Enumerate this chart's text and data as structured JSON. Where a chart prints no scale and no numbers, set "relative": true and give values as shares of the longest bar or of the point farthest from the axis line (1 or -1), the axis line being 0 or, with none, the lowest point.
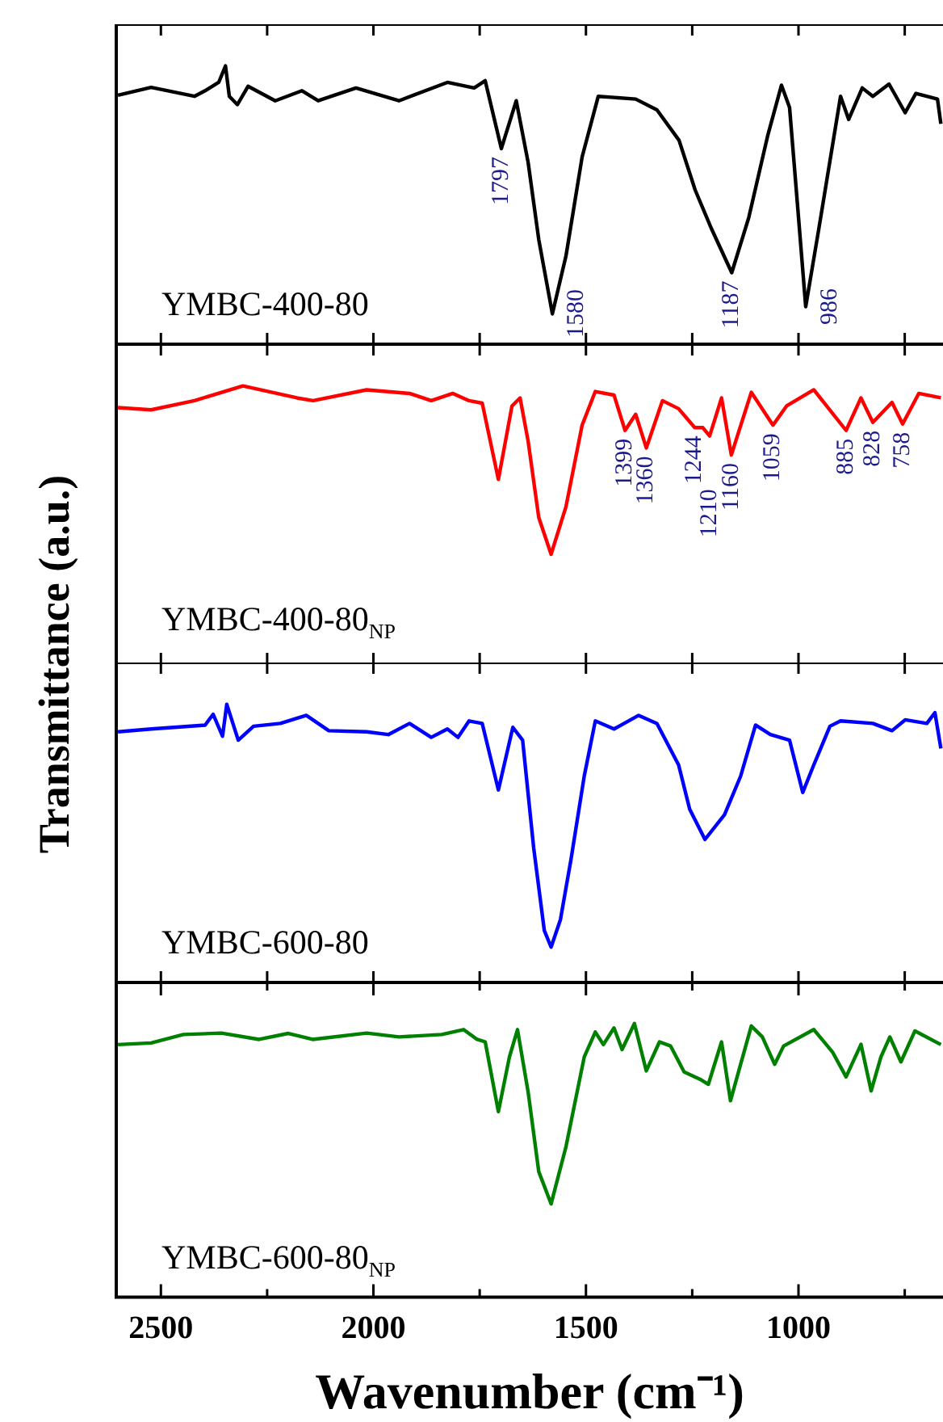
{
  "chart_data": [
    {
      "type": "line",
      "ylabel": "Transmittance (a.u.)",
      "relative": true,
      "xlim": [
        2605,
        660
      ],
      "xticks": [
        {
          "value": 2500,
          "label": null
        },
        {
          "value": 2250,
          "label": null
        },
        {
          "value": 2000,
          "label": null
        },
        {
          "value": 1750,
          "label": null
        },
        {
          "value": 1500,
          "label": null
        },
        {
          "value": 1250,
          "label": null
        },
        {
          "value": 1000,
          "label": null
        },
        {
          "value": 750,
          "label": null
        }
      ],
      "tick_labels": false,
      "series": [
        {
          "name": "YMBC-400-80",
          "color": "#000000",
          "x": [
            2601,
            2523,
            2421,
            2396,
            2364,
            2348,
            2339,
            2320,
            2295,
            2231,
            2168,
            2130,
            2041,
            1940,
            1826,
            1763,
            1737,
            1699,
            1664,
            1636,
            1611,
            1579,
            1547,
            1509,
            1471,
            1383,
            1333,
            1281,
            1243,
            1205,
            1157,
            1117,
            1072,
            1040,
            1021,
            1002,
            983,
            952,
            901,
            882,
            850,
            825,
            787,
            749,
            724,
            673,
            665
          ],
          "values": [
            0.895,
            0.923,
            0.891,
            0.911,
            0.941,
            1.0,
            0.891,
            0.861,
            0.927,
            0.875,
            0.911,
            0.875,
            0.921,
            0.875,
            0.941,
            0.921,
            0.947,
            0.703,
            0.875,
            0.653,
            0.376,
            0.109,
            0.317,
            0.673,
            0.891,
            0.881,
            0.842,
            0.733,
            0.554,
            0.416,
            0.257,
            0.455,
            0.752,
            0.931,
            0.851,
            0.495,
            0.135,
            0.416,
            0.891,
            0.808,
            0.921,
            0.891,
            0.935,
            0.832,
            0.901,
            0.881,
            0.792
          ]
        }
      ],
      "annotations": [
        {
          "text": "1797",
          "x": 1699,
          "y": 0.703
        },
        {
          "text": "1580",
          "x": 1579,
          "y": 0.109
        },
        {
          "text": "1187",
          "x": 1157,
          "y": 0.257
        },
        {
          "text": "986",
          "x": 983,
          "y": 0.135
        }
      ]
    },
    {
      "type": "line",
      "relative": true,
      "xlim": [
        2605,
        660
      ],
      "xticks": [
        {
          "value": 2500,
          "label": null
        },
        {
          "value": 2250,
          "label": null
        },
        {
          "value": 2000,
          "label": null
        },
        {
          "value": 1750,
          "label": null
        },
        {
          "value": 1500,
          "label": null
        },
        {
          "value": 1250,
          "label": null
        },
        {
          "value": 1000,
          "label": null
        },
        {
          "value": 750,
          "label": null
        }
      ],
      "tick_labels": false,
      "series": [
        {
          "name": "YMBC-400-80$_{NP}$",
          "color": "#ff0000",
          "x": [
            2601,
            2523,
            2421,
            2307,
            2180,
            2142,
            2016,
            1915,
            1864,
            1813,
            1775,
            1744,
            1706,
            1674,
            1655,
            1636,
            1611,
            1582,
            1547,
            1509,
            1478,
            1434,
            1408,
            1383,
            1358,
            1320,
            1282,
            1244,
            1225,
            1209,
            1181,
            1158,
            1111,
            1060,
            1028,
            964,
            888,
            853,
            825,
            780,
            755,
            717,
            665
          ],
          "values": [
            0.922,
            0.914,
            0.947,
            1.0,
            0.957,
            0.947,
            0.986,
            0.973,
            0.947,
            0.973,
            0.947,
            0.938,
            0.664,
            0.928,
            0.957,
            0.801,
            0.527,
            0.395,
            0.566,
            0.859,
            0.98,
            0.967,
            0.84,
            0.898,
            0.777,
            0.947,
            0.918,
            0.85,
            0.85,
            0.82,
            0.957,
            0.752,
            0.977,
            0.859,
            0.928,
            0.986,
            0.84,
            0.957,
            0.869,
            0.941,
            0.863,
            0.973,
            0.957
          ]
        }
      ],
      "annotations": [
        {
          "text": "1399",
          "x": 1408,
          "y": 0.84
        },
        {
          "text": "1360",
          "x": 1358,
          "y": 0.777
        },
        {
          "text": "1244",
          "x": 1244,
          "y": 0.85
        },
        {
          "text": "1210",
          "x": 1209,
          "y": 0.82
        },
        {
          "text": "1160",
          "x": 1158,
          "y": 0.752
        },
        {
          "text": "1059",
          "x": 1060,
          "y": 0.859
        },
        {
          "text": "885",
          "x": 888,
          "y": 0.84
        },
        {
          "text": "828",
          "x": 825,
          "y": 0.869
        },
        {
          "text": "758",
          "x": 755,
          "y": 0.863
        }
      ]
    },
    {
      "type": "line",
      "relative": true,
      "xlim": [
        2605,
        660
      ],
      "xticks": [
        {
          "value": 2500,
          "label": null
        },
        {
          "value": 2250,
          "label": null
        },
        {
          "value": 2000,
          "label": null
        },
        {
          "value": 1750,
          "label": null
        },
        {
          "value": 1500,
          "label": null
        },
        {
          "value": 1250,
          "label": null
        },
        {
          "value": 1000,
          "label": null
        },
        {
          "value": 750,
          "label": null
        }
      ],
      "tick_labels": false,
      "series": [
        {
          "name": "YMBC-600-80",
          "color": "#0000ff",
          "x": [
            2601,
            2523,
            2396,
            2377,
            2355,
            2345,
            2318,
            2282,
            2219,
            2158,
            2105,
            2016,
            1965,
            1915,
            1864,
            1826,
            1801,
            1775,
            1744,
            1706,
            1672,
            1649,
            1623,
            1598,
            1582,
            1560,
            1535,
            1504,
            1478,
            1434,
            1376,
            1333,
            1282,
            1256,
            1220,
            1174,
            1136,
            1101,
            1066,
            1021,
            990,
            964,
            926,
            901,
            825,
            780,
            749,
            698,
            679,
            665
          ],
          "values": [
            0.901,
            0.911,
            0.925,
            0.964,
            0.885,
            1.0,
            0.871,
            0.921,
            0.931,
            0.96,
            0.905,
            0.901,
            0.891,
            0.931,
            0.881,
            0.911,
            0.881,
            0.94,
            0.931,
            0.692,
            0.917,
            0.871,
            0.484,
            0.187,
            0.127,
            0.226,
            0.444,
            0.742,
            0.94,
            0.911,
            0.96,
            0.931,
            0.782,
            0.623,
            0.514,
            0.603,
            0.742,
            0.925,
            0.891,
            0.871,
            0.683,
            0.782,
            0.921,
            0.94,
            0.931,
            0.905,
            0.944,
            0.931,
            0.97,
            0.841
          ]
        }
      ]
    },
    {
      "type": "line",
      "relative": true,
      "xlabel": "Wavenumber (cm⁻¹)",
      "xlim": [
        2605,
        660
      ],
      "xticks": [
        {
          "value": 2500,
          "label": "2500"
        },
        {
          "value": 2250,
          "label": null
        },
        {
          "value": 2000,
          "label": "2000"
        },
        {
          "value": 1750,
          "label": null
        },
        {
          "value": 1500,
          "label": "1500"
        },
        {
          "value": 1250,
          "label": null
        },
        {
          "value": 1000,
          "label": "1000"
        },
        {
          "value": 750,
          "label": null
        }
      ],
      "tick_labels": "x",
      "series": [
        {
          "name": "YMBC-600-80$_{NP}$",
          "color": "#008000",
          "x": [
            2601,
            2523,
            2447,
            2358,
            2269,
            2200,
            2143,
            2016,
            1940,
            1839,
            1788,
            1756,
            1737,
            1706,
            1680,
            1661,
            1636,
            1611,
            1582,
            1547,
            1504,
            1478,
            1459,
            1434,
            1415,
            1386,
            1358,
            1327,
            1301,
            1269,
            1231,
            1212,
            1181,
            1160,
            1111,
            1085,
            1056,
            1035,
            964,
            920,
            888,
            853,
            829,
            806,
            785,
            759,
            726,
            665
          ],
          "values": [
            0.923,
            0.929,
            0.96,
            0.965,
            0.942,
            0.964,
            0.942,
            0.965,
            0.951,
            0.96,
            0.978,
            0.942,
            0.933,
            0.678,
            0.878,
            0.978,
            0.75,
            0.459,
            0.341,
            0.55,
            0.878,
            0.969,
            0.923,
            0.984,
            0.905,
            1.0,
            0.827,
            0.933,
            0.918,
            0.823,
            0.796,
            0.778,
            0.933,
            0.718,
            0.991,
            0.951,
            0.851,
            0.918,
            0.978,
            0.896,
            0.805,
            0.924,
            0.754,
            0.878,
            0.951,
            0.86,
            0.973,
            0.923
          ]
        }
      ]
    }
  ]
}
